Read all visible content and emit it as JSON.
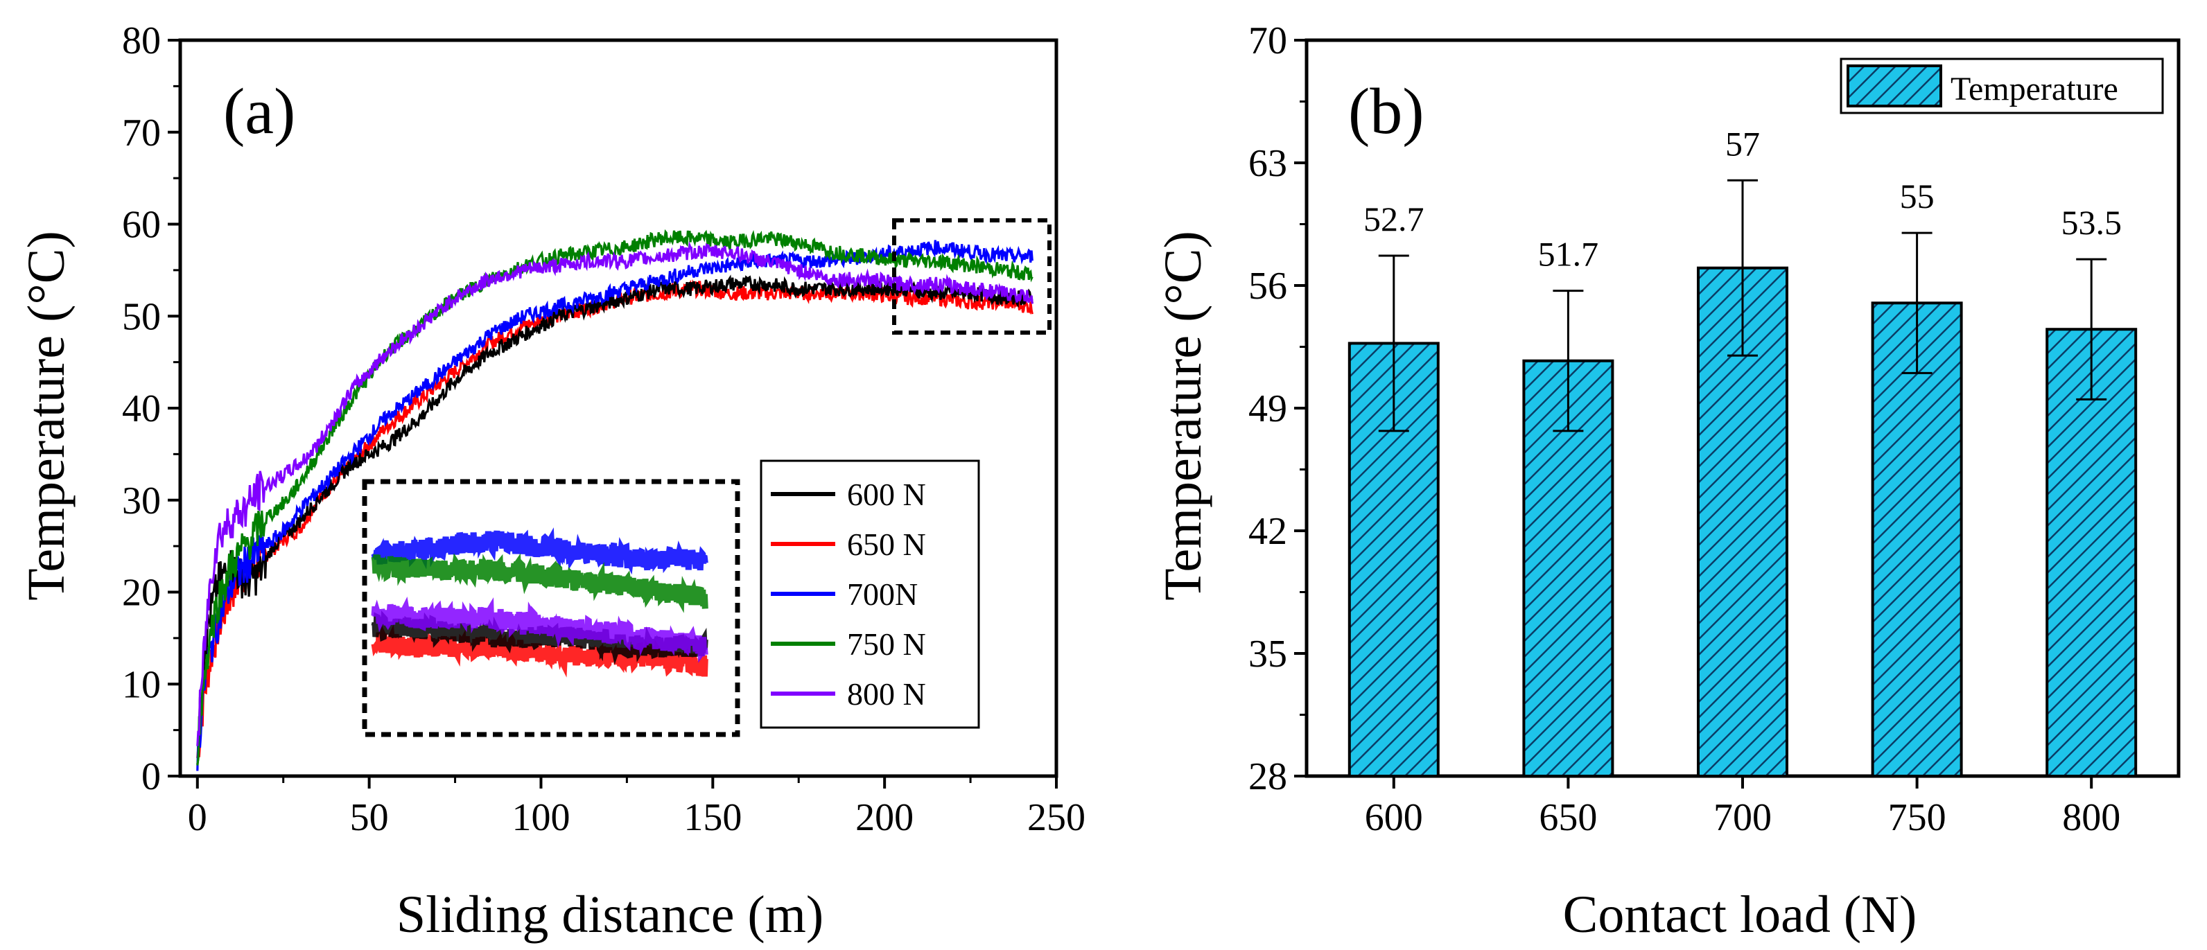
{
  "chart_data": [
    {
      "type": "line",
      "panel_label": "(a)",
      "xlabel": "Sliding distance (m)",
      "ylabel": "Temperature (°C)",
      "xlim": [
        -5,
        250
      ],
      "ylim": [
        0,
        80
      ],
      "xticks": [
        "0",
        "50",
        "100",
        "150",
        "200",
        "250"
      ],
      "yticks": [
        "0",
        "10",
        "20",
        "30",
        "40",
        "50",
        "60",
        "70",
        "80"
      ],
      "legend_position": "center-right",
      "inset": "zoomed view of 200-245 m region",
      "series": [
        {
          "name": "600 N",
          "color": "#000000",
          "x": [
            0,
            2,
            4,
            6,
            8,
            10,
            14,
            18,
            22,
            28,
            35,
            45,
            55,
            65,
            75,
            85,
            95,
            105,
            115,
            125,
            135,
            145,
            155,
            165,
            175,
            185,
            195,
            205,
            215,
            225,
            235,
            243
          ],
          "y": [
            2,
            14,
            18,
            21,
            22,
            23,
            21,
            22,
            25,
            27,
            30,
            34,
            36,
            39,
            43,
            46,
            48,
            50,
            51,
            52,
            53,
            53,
            53.5,
            53.5,
            53,
            53,
            53,
            53,
            52.5,
            52.5,
            52,
            52
          ]
        },
        {
          "name": "650 N",
          "color": "#ff0000",
          "x": [
            0,
            2,
            4,
            6,
            8,
            10,
            14,
            20,
            26,
            30,
            35,
            45,
            55,
            65,
            75,
            85,
            95,
            105,
            115,
            125,
            135,
            145,
            155,
            165,
            175,
            185,
            195,
            205,
            215,
            225,
            235,
            243
          ],
          "y": [
            2,
            9,
            13,
            16,
            18,
            20,
            22,
            24,
            26,
            27,
            30,
            34,
            38,
            41,
            44,
            47,
            49,
            50,
            51,
            52,
            52.5,
            53,
            52.5,
            52.5,
            52.5,
            52.5,
            52.5,
            52,
            52,
            51.5,
            51.5,
            51
          ]
        },
        {
          "name": "700N",
          "color": "#0000ff",
          "x": [
            0,
            2,
            4,
            6,
            8,
            10,
            14,
            20,
            26,
            30,
            35,
            45,
            55,
            65,
            75,
            85,
            95,
            105,
            115,
            125,
            135,
            145,
            155,
            165,
            175,
            185,
            195,
            205,
            215,
            225,
            235,
            243
          ],
          "y": [
            2,
            10,
            14,
            17,
            19,
            21,
            23,
            25,
            27,
            29,
            31,
            35,
            39,
            42,
            45,
            48,
            50,
            51,
            52,
            53,
            54,
            55,
            55.5,
            56,
            56,
            56,
            56.5,
            57,
            57.5,
            57,
            56.5,
            56.5
          ]
        },
        {
          "name": "750 N",
          "color": "#008000",
          "x": [
            0,
            2,
            4,
            6,
            8,
            10,
            14,
            20,
            26,
            30,
            35,
            45,
            55,
            65,
            75,
            85,
            95,
            105,
            115,
            125,
            135,
            145,
            155,
            165,
            175,
            185,
            195,
            205,
            215,
            225,
            235,
            243
          ],
          "y": [
            3,
            11,
            16,
            19,
            21,
            23,
            25,
            28,
            30,
            32,
            35,
            41,
            46,
            49,
            52,
            54,
            55.5,
            56.5,
            57,
            57.5,
            58.5,
            58.5,
            58,
            58.5,
            58,
            57,
            56.5,
            56,
            56,
            55.5,
            55,
            54.5
          ]
        },
        {
          "name": "800 N",
          "color": "#8000ff",
          "x": [
            0,
            2,
            4,
            6,
            8,
            10,
            14,
            18,
            22,
            26,
            30,
            35,
            45,
            55,
            65,
            75,
            85,
            95,
            105,
            115,
            125,
            135,
            145,
            155,
            165,
            175,
            185,
            195,
            205,
            215,
            225,
            235,
            243
          ],
          "y": [
            3,
            14,
            22,
            26,
            27,
            28,
            29,
            31,
            32,
            33,
            34,
            36,
            42,
            46,
            49,
            52,
            54,
            55,
            55.5,
            56,
            56,
            56.5,
            57,
            57,
            56,
            55,
            54,
            54,
            53.5,
            53.5,
            53,
            52.5,
            52
          ]
        }
      ]
    },
    {
      "type": "bar",
      "panel_label": "(b)",
      "xlabel": "Contact load (N)",
      "ylabel": "Temperature (°C)",
      "ylim": [
        28,
        70
      ],
      "yticks": [
        "28",
        "35",
        "42",
        "49",
        "56",
        "63",
        "70"
      ],
      "categories": [
        "600",
        "650",
        "700",
        "750",
        "800"
      ],
      "series": [
        {
          "name": "Temperature",
          "values": [
            52.7,
            51.7,
            57,
            55,
            53.5
          ],
          "value_labels": [
            "52.7",
            "51.7",
            "57",
            "55",
            "53.5"
          ],
          "error": [
            5,
            4,
            5,
            4,
            4
          ],
          "color": "#1ec4ea"
        }
      ],
      "legend_position": "top-right"
    }
  ]
}
